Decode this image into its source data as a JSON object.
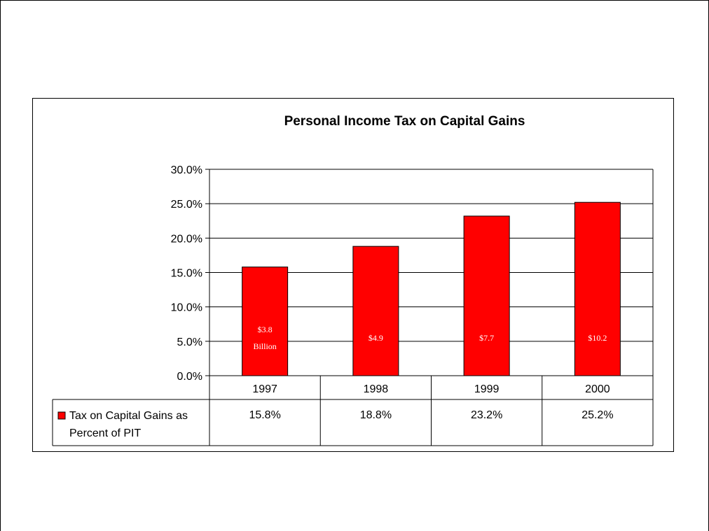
{
  "chart_data": {
    "type": "bar",
    "title": "Personal Income Tax on Capital Gains",
    "xlabel": "",
    "ylabel": "",
    "categories": [
      "1997",
      "1998",
      "1999",
      "2000"
    ],
    "series": [
      {
        "name": "Tax on Capital Gains as Percent of PIT",
        "values": [
          15.8,
          18.8,
          23.2,
          25.2
        ],
        "color": "#ff0000",
        "table_values": [
          "15.8%",
          "18.8%",
          "23.2%",
          "25.2%"
        ],
        "bar_labels": [
          [
            "$3.8",
            "Billion"
          ],
          [
            "$4.9"
          ],
          [
            "$7.7"
          ],
          [
            "$10.2"
          ]
        ]
      }
    ],
    "legend_lines": [
      "Tax on Capital Gains as",
      "Percent of PIT"
    ],
    "ylim": [
      0,
      30
    ],
    "yticks": [
      0,
      5,
      10,
      15,
      20,
      25,
      30
    ],
    "ytick_labels": [
      "0.0%",
      "5.0%",
      "10.0%",
      "15.0%",
      "20.0%",
      "25.0%",
      "30.0%"
    ],
    "grid": true,
    "legend_placement": "data table, left"
  }
}
